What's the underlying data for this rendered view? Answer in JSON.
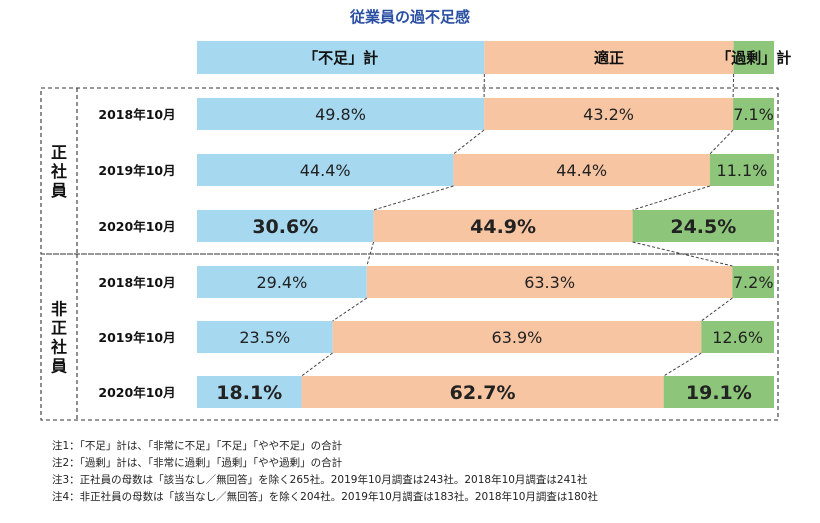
{
  "title": "従業員の過不足感",
  "legend": [
    "「不足」計",
    "適正",
    "「過剰」計"
  ],
  "colors": {
    "shortage": "#a6d8f0",
    "adequate": "#f8c5a3",
    "surplus": "#8dc67a",
    "legend_text": "#111111"
  },
  "chart_data": {
    "type": "bar",
    "stacked": true,
    "orientation": "horizontal",
    "title": "従業員の過不足感",
    "series": [
      {
        "name": "「不足」計",
        "values": [
          49.8,
          44.4,
          30.6,
          29.4,
          23.5,
          18.1
        ]
      },
      {
        "name": "適正",
        "values": [
          43.2,
          44.4,
          44.9,
          63.3,
          63.9,
          62.7
        ]
      },
      {
        "name": "「過剰」計",
        "values": [
          7.1,
          11.1,
          24.5,
          7.2,
          12.6,
          19.1
        ]
      }
    ],
    "groups": [
      {
        "label": "正社員",
        "rows": [
          {
            "label": "2018年10月",
            "values": [
              "49.8%",
              "43.2%",
              "7.1%"
            ],
            "bold": false
          },
          {
            "label": "2019年10月",
            "values": [
              "44.4%",
              "44.4%",
              "11.1%"
            ],
            "bold": false
          },
          {
            "label": "2020年10月",
            "values": [
              "30.6%",
              "44.9%",
              "24.5%"
            ],
            "bold": true
          }
        ]
      },
      {
        "label": "非正社員",
        "rows": [
          {
            "label": "2018年10月",
            "values": [
              "29.4%",
              "63.3%",
              "7.2%"
            ],
            "bold": false
          },
          {
            "label": "2019年10月",
            "values": [
              "23.5%",
              "63.9%",
              "12.6%"
            ],
            "bold": false
          },
          {
            "label": "2020年10月",
            "values": [
              "18.1%",
              "62.7%",
              "19.1%"
            ],
            "bold": true
          }
        ]
      }
    ],
    "xlim": [
      0,
      100
    ]
  },
  "notes": [
    "注1：「不足」計は、「非常に不足」「不足」「やや不足」の合計",
    "注2：「過剰」計は、「非常に過剰」「過剰」「やや過剰」の合計",
    "注3：正社員の母数は「該当なし／無回答」を除く265社。2019年10月調査は243社。2018年10月調査は241社",
    "注4：非正社員の母数は「該当なし／無回答」を除く204社。2019年10月調査は183社。2018年10月調査は180社"
  ]
}
